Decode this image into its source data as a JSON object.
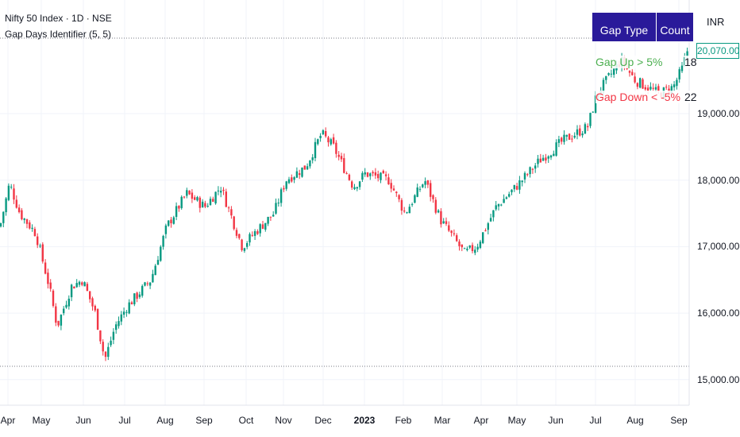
{
  "header": {
    "symbol": "Nifty 50 Index · 1D · NSE",
    "indicator": "Gap Days Identifier (5, 5)"
  },
  "table": {
    "headers": [
      "Gap Type",
      "Count"
    ],
    "rows": [
      {
        "type": "Gap Up > 5%",
        "count": "18",
        "color": "#4caf50"
      },
      {
        "type": "Gap Down < -5%",
        "count": "22",
        "color": "#f23645"
      }
    ],
    "bg": "#2a1a9a"
  },
  "currency": "INR",
  "last_price": "20,070.00",
  "y_axis": [
    "19,000.00",
    "18,000.00",
    "17,000.00",
    "16,000.00",
    "15,000.00"
  ],
  "x_axis": [
    "Apr",
    "May",
    "Jun",
    "Jul",
    "Aug",
    "Sep",
    "Oct",
    "Nov",
    "Dec",
    "2023",
    "Feb",
    "Mar",
    "Apr",
    "May",
    "Jun",
    "Jul",
    "Aug",
    "Sep"
  ],
  "colors": {
    "up": "#089981",
    "down": "#f23645"
  },
  "chart_data": {
    "type": "candlestick",
    "ylim": [
      14900,
      20300
    ],
    "path": [
      [
        0,
        17300
      ],
      [
        12,
        17950
      ],
      [
        25,
        17500
      ],
      [
        45,
        17200
      ],
      [
        62,
        16400
      ],
      [
        72,
        15800
      ],
      [
        90,
        16400
      ],
      [
        104,
        16500
      ],
      [
        120,
        16000
      ],
      [
        132,
        15300
      ],
      [
        145,
        15800
      ],
      [
        160,
        16100
      ],
      [
        190,
        16500
      ],
      [
        210,
        17300
      ],
      [
        235,
        17800
      ],
      [
        258,
        17600
      ],
      [
        278,
        17900
      ],
      [
        290,
        17500
      ],
      [
        305,
        17000
      ],
      [
        320,
        17200
      ],
      [
        345,
        17500
      ],
      [
        360,
        18000
      ],
      [
        385,
        18200
      ],
      [
        405,
        18700
      ],
      [
        420,
        18500
      ],
      [
        445,
        17900
      ],
      [
        460,
        18100
      ],
      [
        490,
        18000
      ],
      [
        510,
        17500
      ],
      [
        535,
        18000
      ],
      [
        555,
        17400
      ],
      [
        585,
        16900
      ],
      [
        600,
        17000
      ],
      [
        625,
        17600
      ],
      [
        650,
        17900
      ],
      [
        680,
        18300
      ],
      [
        710,
        18600
      ],
      [
        740,
        18800
      ],
      [
        752,
        19300
      ],
      [
        782,
        19800
      ],
      [
        800,
        19500
      ],
      [
        830,
        19300
      ],
      [
        848,
        19400
      ],
      [
        860,
        19700
      ],
      [
        868,
        20050
      ]
    ]
  }
}
